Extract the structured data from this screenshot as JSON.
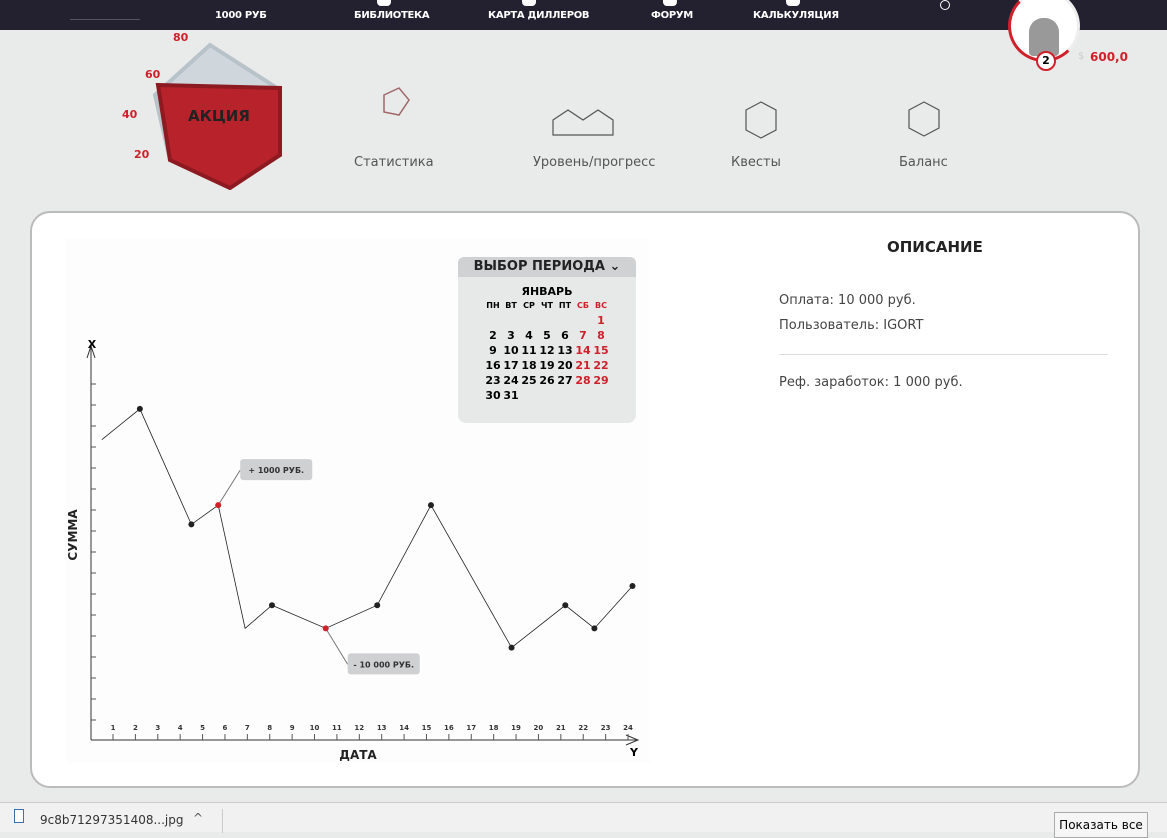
{
  "nav": {
    "balance": "1000 РУБ",
    "items": [
      "БИБЛИОТЕКА",
      "КАРТА ДИЛЛЕРОВ",
      "ФОРУМ",
      "КАЛЬКУЛЯЦИЯ"
    ]
  },
  "user": {
    "badge": "2",
    "amount": "600,0",
    "currency_icon": "dollar"
  },
  "promo": {
    "label": "АКЦИЯ",
    "scale": [
      "80",
      "60",
      "40",
      "20"
    ],
    "fill_percent": 45,
    "color": "#b8232b"
  },
  "menu": [
    "Статистика",
    "Уровень/прогресс",
    "Квесты",
    "Баланс"
  ],
  "calendar": {
    "title": "ВЫБОР ПЕРИОДА",
    "month": "ЯНВАРЬ",
    "days_header": [
      "ПН",
      "ВТ",
      "СР",
      "ЧТ",
      "ПТ",
      "СБ",
      "ВС"
    ],
    "first_offset": 6,
    "days": 31
  },
  "description": {
    "title": "ОПИСАНИЕ",
    "payment": "Оплата: 10 000 руб.",
    "user": "Пользователь: IGORT",
    "ref": "Реф. заработок: 1 000 руб."
  },
  "chart_data": {
    "type": "line",
    "xlabel": "ДАТА",
    "ylabel": "СУММА",
    "x_axis_letter": "Y",
    "y_axis_letter": "X",
    "x_ticks": [
      "1",
      "2",
      "3",
      "4",
      "5",
      "6",
      "7",
      "8",
      "9",
      "10",
      "11",
      "12",
      "13",
      "14",
      "15",
      "16",
      "17",
      "18",
      "19",
      "20",
      "21",
      "22",
      "23",
      "24"
    ],
    "xlim": [
      0.1,
      24.5
    ],
    "ylim": [
      0,
      100
    ],
    "points": [
      {
        "x": 0.5,
        "y": 78
      },
      {
        "x": 2.2,
        "y": 86
      },
      {
        "x": 4.5,
        "y": 56
      },
      {
        "x": 5.7,
        "y": 61,
        "highlight": true
      },
      {
        "x": 6.9,
        "y": 29
      },
      {
        "x": 8.1,
        "y": 35
      },
      {
        "x": 10.5,
        "y": 29,
        "highlight": true
      },
      {
        "x": 12.8,
        "y": 35
      },
      {
        "x": 15.2,
        "y": 61
      },
      {
        "x": 18.8,
        "y": 24
      },
      {
        "x": 21.2,
        "y": 35
      },
      {
        "x": 22.5,
        "y": 29
      },
      {
        "x": 24.2,
        "y": 40
      }
    ],
    "annotations": [
      {
        "text": "+ 1000 РУБ.",
        "point": 3
      },
      {
        "text": "- 10 000 РУБ.",
        "point": 6
      }
    ],
    "highlight_color": "#d0202a"
  },
  "downloads": {
    "file": "9c8b71297351408...jpg",
    "show_all": "Показать все"
  }
}
